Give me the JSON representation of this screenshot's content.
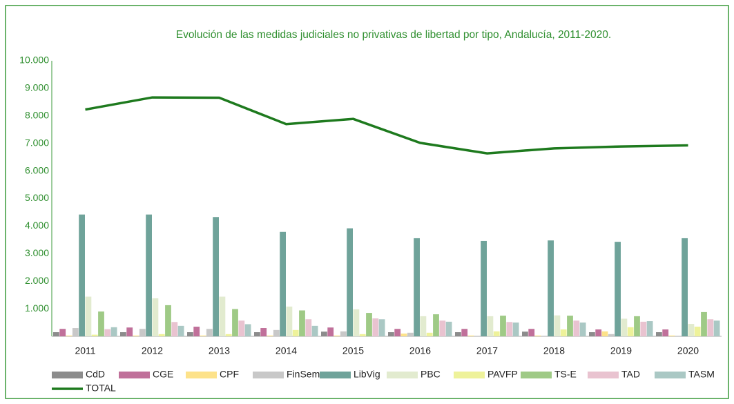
{
  "chart_data": {
    "type": "bar",
    "title": "Evolución de las medidas judiciales no privativas de libertad por tipo, Andalucía, 2011-2020.",
    "categories": [
      "2011",
      "2012",
      "2013",
      "2014",
      "2015",
      "2016",
      "2017",
      "2018",
      "2019",
      "2020"
    ],
    "ylim": [
      0,
      10000
    ],
    "yticks": [
      {
        "value": 1000,
        "label": "1.000"
      },
      {
        "value": 2000,
        "label": "2.000"
      },
      {
        "value": 3000,
        "label": "3.000"
      },
      {
        "value": 4000,
        "label": "4.000"
      },
      {
        "value": 5000,
        "label": "5.000"
      },
      {
        "value": 6000,
        "label": "6.000"
      },
      {
        "value": 7000,
        "label": "7.000"
      },
      {
        "value": 8000,
        "label": "8.000"
      },
      {
        "value": 9000,
        "label": "9.000"
      },
      {
        "value": 10000,
        "label": "10.000"
      }
    ],
    "grid": false,
    "series": [
      {
        "name": "CdD",
        "color": "#8c8c8c",
        "values": [
          150,
          150,
          150,
          150,
          170,
          150,
          150,
          170,
          150,
          150
        ]
      },
      {
        "name": "CGE",
        "color": "#c0709a",
        "values": [
          270,
          320,
          350,
          300,
          320,
          270,
          270,
          270,
          250,
          250
        ]
      },
      {
        "name": "CPF",
        "color": "#fde28a",
        "values": [
          30,
          30,
          30,
          30,
          30,
          100,
          30,
          30,
          180,
          30
        ]
      },
      {
        "name": "FinSem",
        "color": "#c8c8c8",
        "values": [
          300,
          270,
          270,
          230,
          180,
          130,
          20,
          20,
          80,
          20
        ]
      },
      {
        "name": "LibVig",
        "color": "#6fa39a",
        "values": [
          4420,
          4420,
          4330,
          3790,
          3920,
          3560,
          3460,
          3480,
          3430,
          3560
        ]
      },
      {
        "name": "PBC",
        "color": "#e2ebcf",
        "values": [
          1440,
          1380,
          1440,
          1080,
          980,
          730,
          730,
          760,
          640,
          450
        ]
      },
      {
        "name": "PAVFP",
        "color": "#eef29a",
        "values": [
          60,
          80,
          80,
          230,
          80,
          130,
          180,
          250,
          330,
          350
        ]
      },
      {
        "name": "TS-E",
        "color": "#9fca86",
        "values": [
          900,
          1130,
          990,
          940,
          850,
          800,
          750,
          750,
          730,
          880
        ]
      },
      {
        "name": "TAD",
        "color": "#e9c3d0",
        "values": [
          260,
          520,
          570,
          620,
          650,
          570,
          520,
          570,
          530,
          620
        ]
      },
      {
        "name": "TASM",
        "color": "#aac8c4",
        "values": [
          330,
          380,
          440,
          380,
          620,
          530,
          500,
          500,
          550,
          570
        ]
      },
      {
        "name": "TOTAL",
        "color": "#1e7a1e",
        "type": "line",
        "values": [
          8230,
          8670,
          8660,
          7700,
          7890,
          7020,
          6640,
          6820,
          6890,
          6930
        ]
      }
    ]
  }
}
